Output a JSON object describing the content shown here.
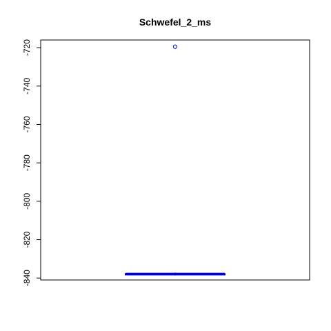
{
  "chart_data": {
    "type": "box",
    "title": "Schwefel_2_ms",
    "xlabel": "",
    "ylabel": "",
    "ylim": [
      -841,
      -716
    ],
    "yticks": [
      -720,
      -740,
      -760,
      -780,
      -800,
      -820,
      -840
    ],
    "ytick_labels": [
      "-720",
      "-740",
      "-760",
      "-780",
      "-800",
      "-820",
      "-840"
    ],
    "box": {
      "min": -837.9,
      "q1": -837.9,
      "median": -837.9,
      "q3": -837.9,
      "max": -837.9
    },
    "outliers": [
      -719.5
    ],
    "color": "#0000cc",
    "grid": false,
    "legend": "none"
  }
}
